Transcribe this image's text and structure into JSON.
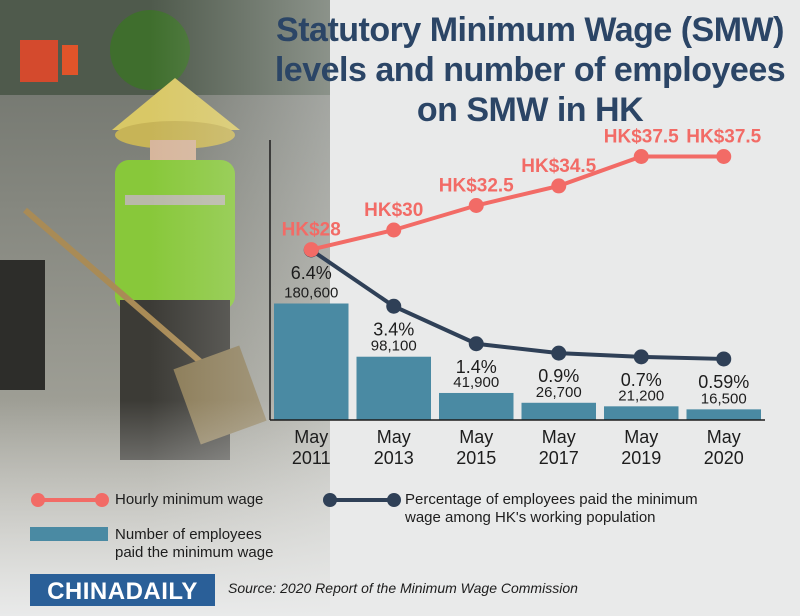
{
  "title": "Statutory Minimum Wage (SMW) levels and number of employees on SMW in HK",
  "colors": {
    "wage": "#f26b66",
    "percent": "#2f4057",
    "bars": "#4a8aa3",
    "title": "#2b4566",
    "brand": "#2a5f98"
  },
  "chart_data": {
    "type": "bar",
    "categories": [
      "May 2011",
      "May 2013",
      "May 2015",
      "May 2017",
      "May 2019",
      "May 2020"
    ],
    "category_lines": [
      [
        "May",
        "2011"
      ],
      [
        "May",
        "2013"
      ],
      [
        "May",
        "2015"
      ],
      [
        "May",
        "2017"
      ],
      [
        "May",
        "2019"
      ],
      [
        "May",
        "2020"
      ]
    ],
    "series": [
      {
        "name": "Hourly minimum wage",
        "kind": "line",
        "values": [
          28,
          30,
          32.5,
          34.5,
          37.5,
          37.5
        ],
        "labels": [
          "HK$28",
          "HK$30",
          "HK$32.5",
          "HK$34.5",
          "HK$37.5",
          "HK$37.5"
        ]
      },
      {
        "name": "Percentage of employees paid the minimum wage among HK's working population",
        "kind": "line",
        "values": [
          6.4,
          3.4,
          1.4,
          0.9,
          0.7,
          0.59
        ],
        "labels": [
          "6.4%",
          "3.4%",
          "1.4%",
          "0.9%",
          "0.7%",
          "0.59%"
        ]
      },
      {
        "name": "Number of employees paid the minimum wage",
        "kind": "bar",
        "values": [
          180600,
          98100,
          41900,
          26700,
          21200,
          16500
        ],
        "labels": [
          "180,600",
          "98,100",
          "41,900",
          "26,700",
          "21,200",
          "16,500"
        ]
      }
    ],
    "grid": false,
    "legend_position": "bottom"
  },
  "legend": {
    "wage": "Hourly minimum wage",
    "percent_line1": "Percentage of employees paid the minimum",
    "percent_line2": "wage among HK's working population",
    "bars_line1": "Number of employees",
    "bars_line2": "paid the minimum wage"
  },
  "footer": {
    "logo_text": "CHINADAILY",
    "source": "Source: 2020 Report of the Minimum Wage Commission"
  }
}
